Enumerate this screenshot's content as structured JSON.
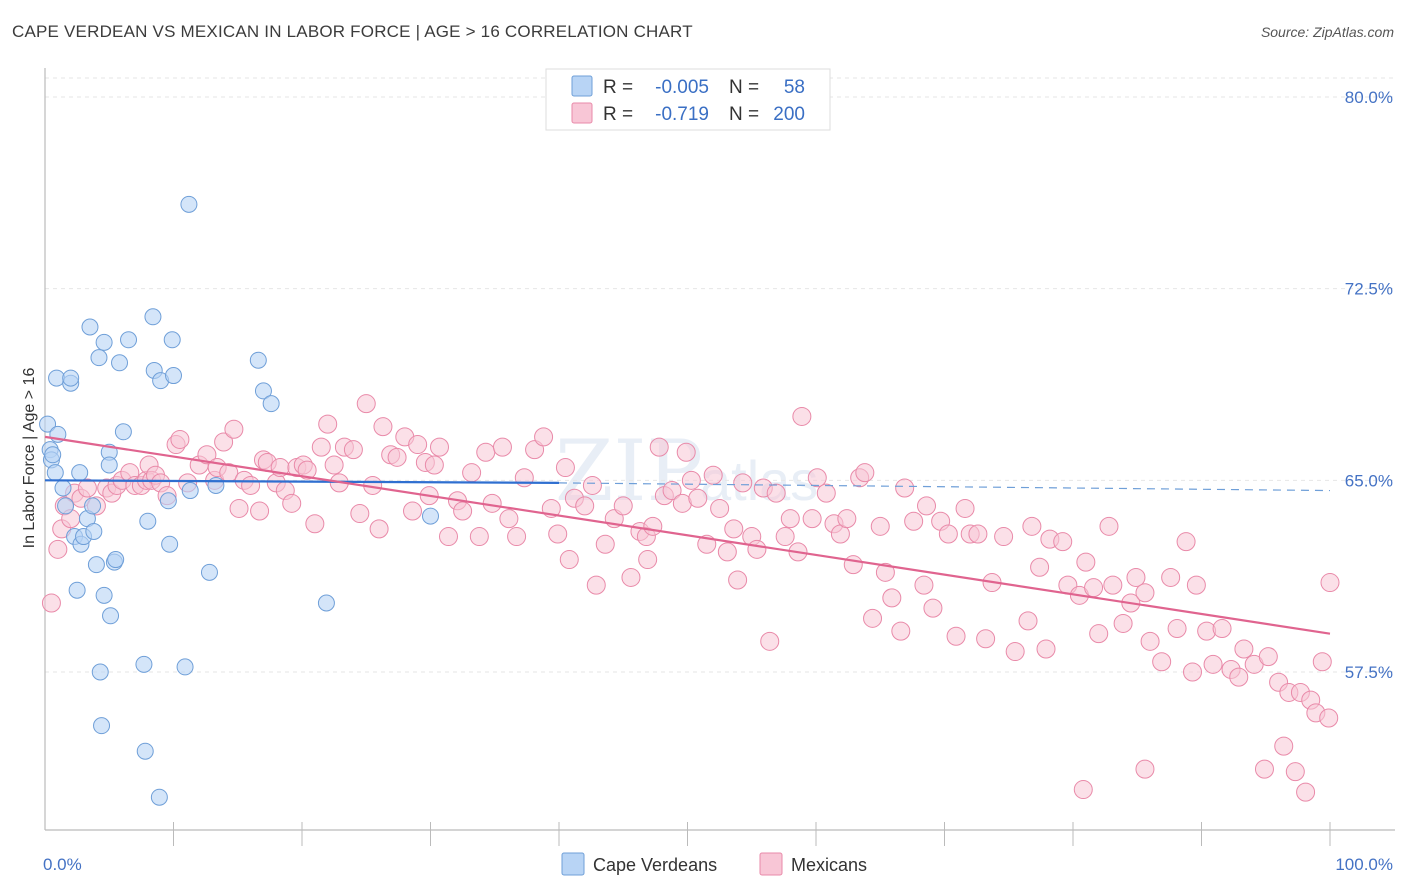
{
  "title": "CAPE VERDEAN VS MEXICAN IN LABOR FORCE | AGE > 16 CORRELATION CHART",
  "source": "Source: ZipAtlas.com",
  "watermark": {
    "zip": "ZIP",
    "atlas": "atlas"
  },
  "colors": {
    "blue_fill": "#b8d4f5",
    "blue_stroke": "#6f9fd8",
    "blue_line": "#2f6fd0",
    "pink_fill": "#f8c6d6",
    "pink_stroke": "#e98aa9",
    "pink_line": "#e0648f",
    "axis_text": "#4472c4",
    "grid": "#e6e6e6"
  },
  "legend": {
    "rows": [
      {
        "r_label": "R =",
        "r_value": "-0.005",
        "n_label": "N =",
        "n_value": "58"
      },
      {
        "r_label": "R =",
        "r_value": "-0.719",
        "n_label": "N =",
        "n_value": "200"
      }
    ]
  },
  "bottom_legend": [
    "Cape Verdeans",
    "Mexicans"
  ],
  "chart_data": {
    "type": "scatter",
    "xlabel": "",
    "ylabel": "In Labor Force | Age > 16",
    "xlim": [
      0,
      100
    ],
    "ylim": [
      50,
      81
    ],
    "x_tick_labels": [
      {
        "value": 0,
        "label": "0.0%"
      },
      {
        "value": 100,
        "label": "100.0%"
      }
    ],
    "y_ticks": [
      {
        "value": 57.5,
        "label": "57.5%"
      },
      {
        "value": 65.0,
        "label": "65.0%"
      },
      {
        "value": 72.5,
        "label": "72.5%"
      },
      {
        "value": 80.0,
        "label": "80.0%"
      }
    ],
    "grid": "horizontal dashed",
    "series": [
      {
        "name": "Cape Verdeans",
        "trend": {
          "x0": 0,
          "y0": 65.0,
          "x1": 40,
          "y1": 64.9,
          "dashed_to": 100,
          "dashed_y": 64.6
        },
        "points": [
          [
            0.2,
            67.2
          ],
          [
            0.4,
            66.2
          ],
          [
            0.5,
            65.8
          ],
          [
            0.6,
            66.0
          ],
          [
            0.8,
            65.3
          ],
          [
            1.0,
            66.8
          ],
          [
            0.9,
            69.0
          ],
          [
            1.4,
            64.7
          ],
          [
            1.6,
            64.0
          ],
          [
            2.0,
            68.8
          ],
          [
            2.0,
            69.0
          ],
          [
            2.3,
            62.8
          ],
          [
            2.5,
            60.7
          ],
          [
            2.7,
            65.3
          ],
          [
            2.8,
            62.5
          ],
          [
            3.0,
            62.8
          ],
          [
            3.3,
            63.5
          ],
          [
            3.5,
            71.0
          ],
          [
            3.7,
            64.0
          ],
          [
            3.8,
            63.0
          ],
          [
            4.0,
            61.7
          ],
          [
            4.2,
            69.8
          ],
          [
            4.3,
            57.5
          ],
          [
            4.4,
            55.4
          ],
          [
            4.6,
            70.4
          ],
          [
            4.6,
            60.5
          ],
          [
            5.0,
            66.1
          ],
          [
            5.0,
            65.6
          ],
          [
            5.1,
            59.7
          ],
          [
            5.4,
            61.8
          ],
          [
            5.5,
            61.9
          ],
          [
            5.8,
            69.6
          ],
          [
            6.1,
            66.9
          ],
          [
            6.5,
            70.5
          ],
          [
            7.7,
            57.8
          ],
          [
            7.8,
            54.4
          ],
          [
            8.0,
            63.4
          ],
          [
            8.4,
            71.4
          ],
          [
            8.5,
            69.3
          ],
          [
            8.9,
            52.6
          ],
          [
            9.0,
            68.9
          ],
          [
            9.6,
            64.2
          ],
          [
            9.7,
            62.5
          ],
          [
            9.9,
            70.5
          ],
          [
            10.0,
            69.1
          ],
          [
            10.9,
            57.7
          ],
          [
            11.2,
            75.8
          ],
          [
            11.3,
            64.6
          ],
          [
            12.8,
            61.4
          ],
          [
            13.3,
            64.8
          ],
          [
            16.6,
            69.7
          ],
          [
            17.0,
            68.5
          ],
          [
            17.6,
            68.0
          ],
          [
            21.9,
            60.2
          ],
          [
            30.0,
            63.6
          ]
        ]
      },
      {
        "name": "Mexicans",
        "trend": {
          "x0": 0,
          "y0": 66.7,
          "x1": 100,
          "y1": 59.0
        },
        "points": [
          [
            0.5,
            60.2
          ],
          [
            1.0,
            62.3
          ],
          [
            1.3,
            63.1
          ],
          [
            1.5,
            64.0
          ],
          [
            2.0,
            63.5
          ],
          [
            2.3,
            64.5
          ],
          [
            2.8,
            64.3
          ],
          [
            3.3,
            64.7
          ],
          [
            4.0,
            64.0
          ],
          [
            4.8,
            64.7
          ],
          [
            5.2,
            64.5
          ],
          [
            5.6,
            64.8
          ],
          [
            6.0,
            65.0
          ],
          [
            6.6,
            65.3
          ],
          [
            7.0,
            64.8
          ],
          [
            7.5,
            64.8
          ],
          [
            7.9,
            65.0
          ],
          [
            8.1,
            65.6
          ],
          [
            8.3,
            65.0
          ],
          [
            8.6,
            65.2
          ],
          [
            9.0,
            64.9
          ],
          [
            9.5,
            64.4
          ],
          [
            10.2,
            66.4
          ],
          [
            10.5,
            66.6
          ],
          [
            11.1,
            64.9
          ],
          [
            12.0,
            65.6
          ],
          [
            12.6,
            66.0
          ],
          [
            13.2,
            65.0
          ],
          [
            13.4,
            65.5
          ],
          [
            13.9,
            66.5
          ],
          [
            14.3,
            65.3
          ],
          [
            14.7,
            67.0
          ],
          [
            15.1,
            63.9
          ],
          [
            15.5,
            65.0
          ],
          [
            16.0,
            64.8
          ],
          [
            16.7,
            63.8
          ],
          [
            17.0,
            65.8
          ],
          [
            17.3,
            65.7
          ],
          [
            18.0,
            64.9
          ],
          [
            18.3,
            65.5
          ],
          [
            18.7,
            64.6
          ],
          [
            19.2,
            64.1
          ],
          [
            19.6,
            65.5
          ],
          [
            20.1,
            65.6
          ],
          [
            20.4,
            65.4
          ],
          [
            21.0,
            63.3
          ],
          [
            21.5,
            66.3
          ],
          [
            22.0,
            67.2
          ],
          [
            22.5,
            65.6
          ],
          [
            22.9,
            64.9
          ],
          [
            23.3,
            66.3
          ],
          [
            24.0,
            66.2
          ],
          [
            24.5,
            63.7
          ],
          [
            25.0,
            68.0
          ],
          [
            25.5,
            64.8
          ],
          [
            26.0,
            63.1
          ],
          [
            26.3,
            67.1
          ],
          [
            26.9,
            66.0
          ],
          [
            27.4,
            65.9
          ],
          [
            28.0,
            66.7
          ],
          [
            28.6,
            63.8
          ],
          [
            29.0,
            66.4
          ],
          [
            29.6,
            65.7
          ],
          [
            29.9,
            64.4
          ],
          [
            30.3,
            65.6
          ],
          [
            30.7,
            66.3
          ],
          [
            31.4,
            62.8
          ],
          [
            32.1,
            64.2
          ],
          [
            32.5,
            63.8
          ],
          [
            33.2,
            65.3
          ],
          [
            33.8,
            62.8
          ],
          [
            34.3,
            66.1
          ],
          [
            34.8,
            64.1
          ],
          [
            35.6,
            66.3
          ],
          [
            36.1,
            63.5
          ],
          [
            36.7,
            62.8
          ],
          [
            37.3,
            65.1
          ],
          [
            38.1,
            66.2
          ],
          [
            38.8,
            66.7
          ],
          [
            39.4,
            63.9
          ],
          [
            39.9,
            62.9
          ],
          [
            40.5,
            65.5
          ],
          [
            40.8,
            61.9
          ],
          [
            41.2,
            64.3
          ],
          [
            42.0,
            64.0
          ],
          [
            42.6,
            64.8
          ],
          [
            42.9,
            60.9
          ],
          [
            43.6,
            62.5
          ],
          [
            44.3,
            63.5
          ],
          [
            45.0,
            64.0
          ],
          [
            45.6,
            61.2
          ],
          [
            46.3,
            63.0
          ],
          [
            46.8,
            62.8
          ],
          [
            46.9,
            61.9
          ],
          [
            47.3,
            63.2
          ],
          [
            47.8,
            66.3
          ],
          [
            48.2,
            64.4
          ],
          [
            48.8,
            64.6
          ],
          [
            49.6,
            64.1
          ],
          [
            49.9,
            66.1
          ],
          [
            50.3,
            65.0
          ],
          [
            50.8,
            64.3
          ],
          [
            51.5,
            62.5
          ],
          [
            52.0,
            65.2
          ],
          [
            52.5,
            63.9
          ],
          [
            53.1,
            62.2
          ],
          [
            53.6,
            63.1
          ],
          [
            53.9,
            61.1
          ],
          [
            54.3,
            64.9
          ],
          [
            55.0,
            62.8
          ],
          [
            55.4,
            62.3
          ],
          [
            55.9,
            64.7
          ],
          [
            56.4,
            58.7
          ],
          [
            56.9,
            64.5
          ],
          [
            57.6,
            62.8
          ],
          [
            58.0,
            63.5
          ],
          [
            58.6,
            62.2
          ],
          [
            58.9,
            67.5
          ],
          [
            59.7,
            63.5
          ],
          [
            60.1,
            65.1
          ],
          [
            60.8,
            64.5
          ],
          [
            61.4,
            63.3
          ],
          [
            61.9,
            62.9
          ],
          [
            62.4,
            63.5
          ],
          [
            62.9,
            61.7
          ],
          [
            63.4,
            65.1
          ],
          [
            63.8,
            65.3
          ],
          [
            64.4,
            59.6
          ],
          [
            65.0,
            63.2
          ],
          [
            65.4,
            61.4
          ],
          [
            65.9,
            60.4
          ],
          [
            66.6,
            59.1
          ],
          [
            66.9,
            64.7
          ],
          [
            67.6,
            63.4
          ],
          [
            68.4,
            60.9
          ],
          [
            68.6,
            64.0
          ],
          [
            69.1,
            60.0
          ],
          [
            69.7,
            63.4
          ],
          [
            70.3,
            62.9
          ],
          [
            70.9,
            58.9
          ],
          [
            71.6,
            63.9
          ],
          [
            72.0,
            62.9
          ],
          [
            72.6,
            62.9
          ],
          [
            73.2,
            58.8
          ],
          [
            73.7,
            61.0
          ],
          [
            74.6,
            62.8
          ],
          [
            75.5,
            58.3
          ],
          [
            76.5,
            59.5
          ],
          [
            76.8,
            63.2
          ],
          [
            77.4,
            61.6
          ],
          [
            77.9,
            58.4
          ],
          [
            78.2,
            62.7
          ],
          [
            79.2,
            62.6
          ],
          [
            79.6,
            60.9
          ],
          [
            80.5,
            60.5
          ],
          [
            81.0,
            61.8
          ],
          [
            81.6,
            60.8
          ],
          [
            82.0,
            59.0
          ],
          [
            82.8,
            63.2
          ],
          [
            83.1,
            60.9
          ],
          [
            83.9,
            59.4
          ],
          [
            84.5,
            60.2
          ],
          [
            84.9,
            61.2
          ],
          [
            85.6,
            60.6
          ],
          [
            86.0,
            58.7
          ],
          [
            86.9,
            57.9
          ],
          [
            87.6,
            61.2
          ],
          [
            88.1,
            59.2
          ],
          [
            88.8,
            62.6
          ],
          [
            89.3,
            57.5
          ],
          [
            89.6,
            60.9
          ],
          [
            90.4,
            59.1
          ],
          [
            90.9,
            57.8
          ],
          [
            91.6,
            59.2
          ],
          [
            92.3,
            57.6
          ],
          [
            92.9,
            57.3
          ],
          [
            93.3,
            58.4
          ],
          [
            94.1,
            57.8
          ],
          [
            94.9,
            53.7
          ],
          [
            95.2,
            58.1
          ],
          [
            96.0,
            57.1
          ],
          [
            96.4,
            54.6
          ],
          [
            96.8,
            56.7
          ],
          [
            97.3,
            53.6
          ],
          [
            97.7,
            56.7
          ],
          [
            98.1,
            52.8
          ],
          [
            98.5,
            56.4
          ],
          [
            98.9,
            55.9
          ],
          [
            99.4,
            57.9
          ],
          [
            99.9,
            55.7
          ],
          [
            100.0,
            61.0
          ],
          [
            80.8,
            52.9
          ],
          [
            85.6,
            53.7
          ]
        ]
      }
    ]
  }
}
